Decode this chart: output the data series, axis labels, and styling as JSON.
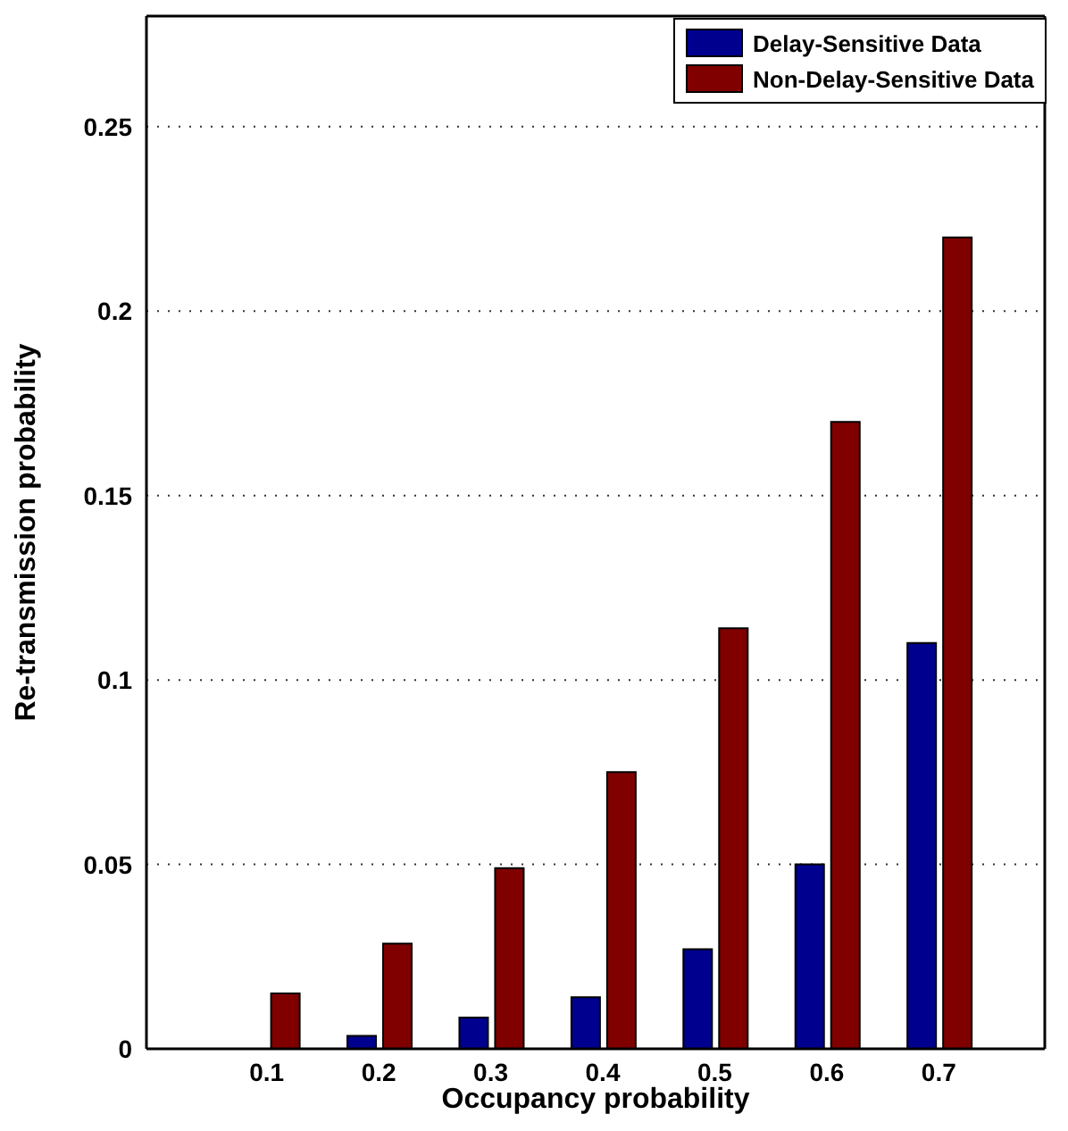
{
  "chart_data": {
    "type": "bar",
    "xlabel": "Occupancy probability",
    "ylabel": "Re-transmission probability",
    "categories": [
      "0.1",
      "0.2",
      "0.3",
      "0.4",
      "0.5",
      "0.6",
      "0.7"
    ],
    "series": [
      {
        "name": "Delay-Sensitive Data",
        "color": "#00008f",
        "values": [
          0,
          0.0035,
          0.0085,
          0.014,
          0.027,
          0.05,
          0.11
        ]
      },
      {
        "name": "Non-Delay-Sensitive Data",
        "color": "#800000",
        "values": [
          0.015,
          0.0285,
          0.049,
          0.075,
          0.114,
          0.17,
          0.22
        ]
      }
    ],
    "ylim": [
      0,
      0.28
    ],
    "yticks": [
      0,
      0.05,
      0.1,
      0.15,
      0.2,
      0.25
    ],
    "grid": "y",
    "legend": "top right"
  }
}
